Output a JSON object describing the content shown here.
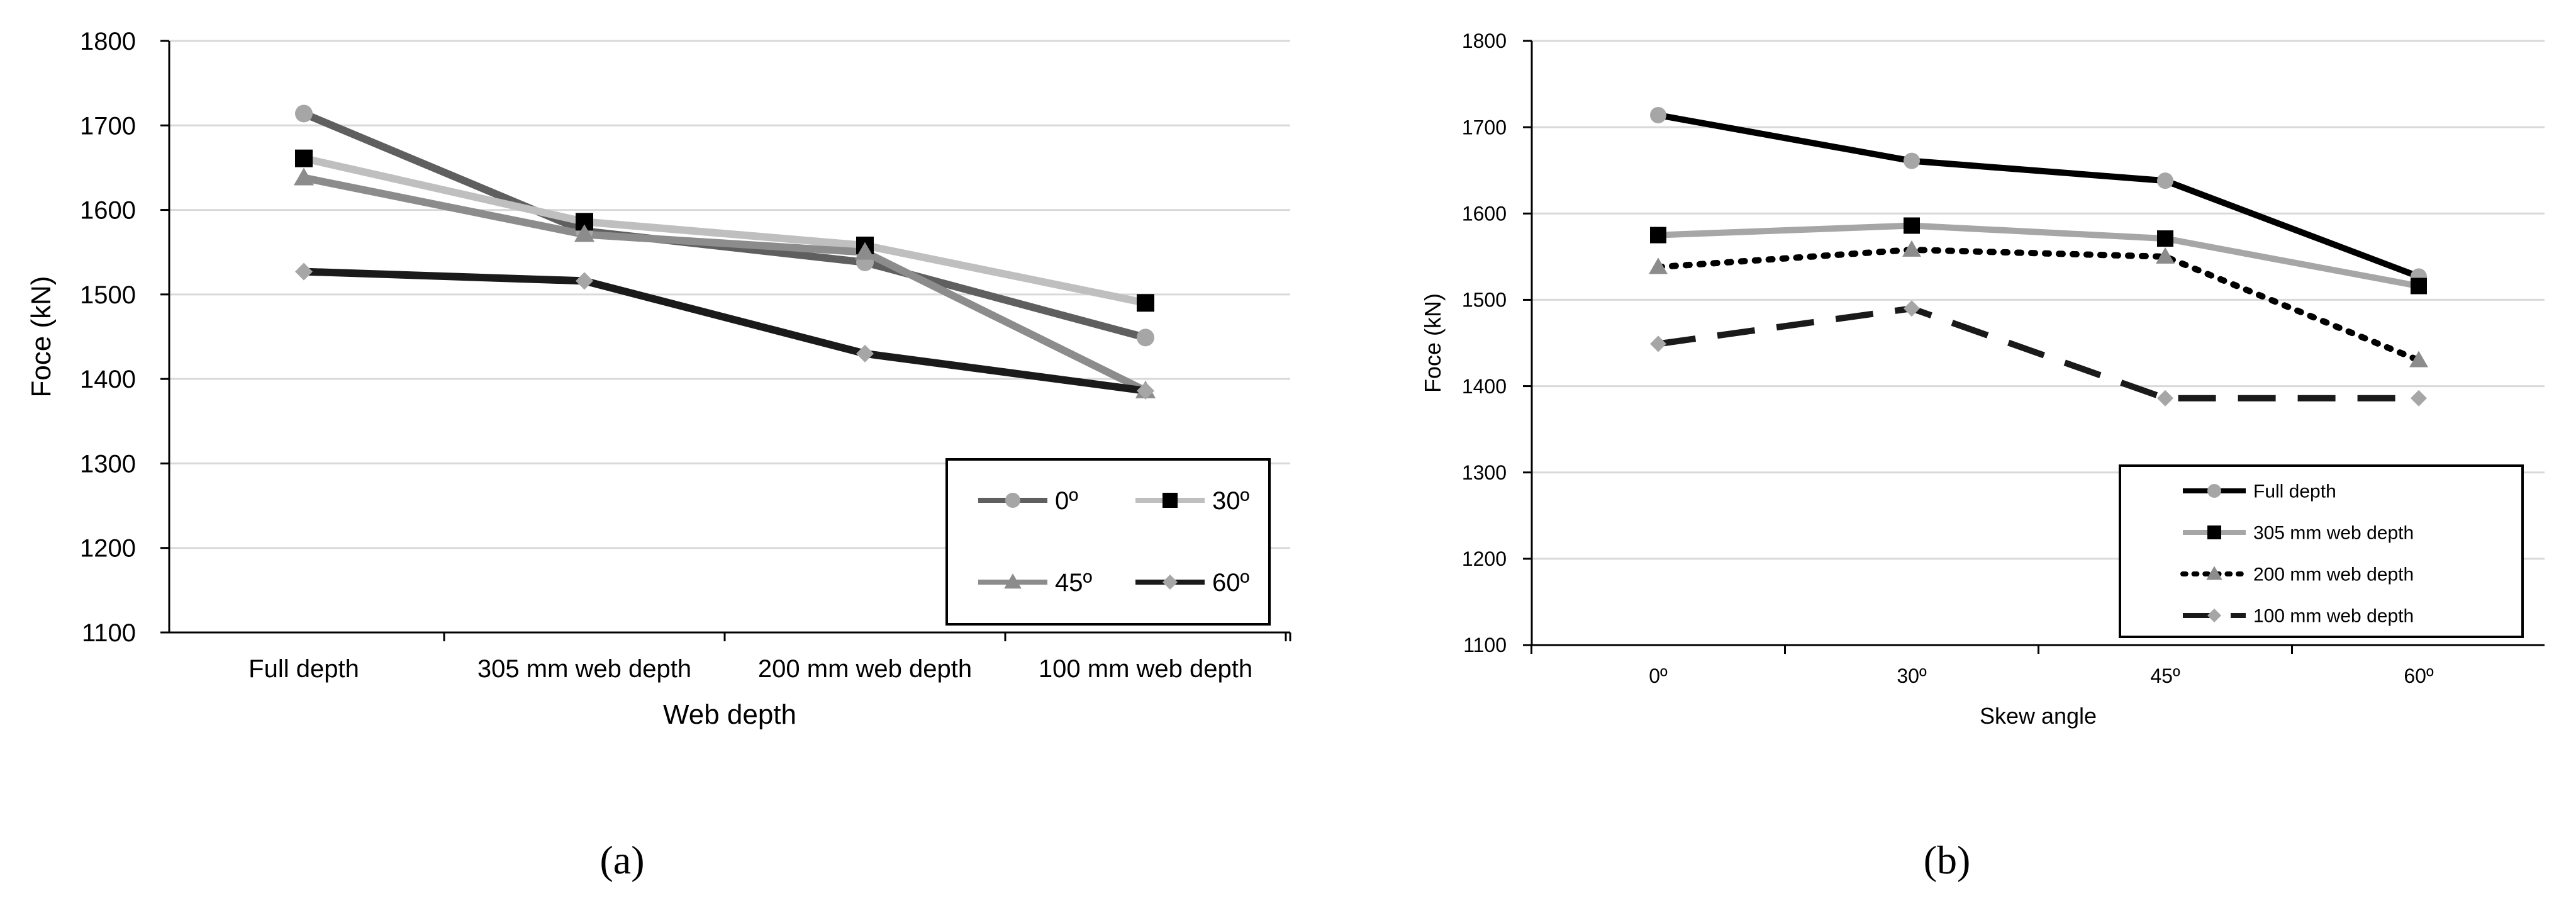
{
  "chart_data": [
    {
      "panel_label": "(a)",
      "type": "line",
      "xlabel": "Web depth",
      "ylabel": "Foce (kN)",
      "categories": [
        "Full depth",
        "305 mm web depth",
        "200 mm web depth",
        "100 mm web depth"
      ],
      "ylim": [
        1100,
        1800
      ],
      "yticks": [
        1100,
        1200,
        1300,
        1400,
        1500,
        1600,
        1700,
        1800
      ],
      "grid": true,
      "legend_placement": "bottom-right",
      "series": [
        {
          "name": "0º",
          "values": [
            1714,
            1575,
            1538,
            1449
          ],
          "color": "#5f5f5f",
          "marker": "circle",
          "marker_color": "#a6a6a6",
          "dash": "solid"
        },
        {
          "name": "30º",
          "values": [
            1661,
            1586,
            1558,
            1490
          ],
          "color": "#bfbfbf",
          "marker": "square",
          "marker_color": "#000000",
          "dash": "solid"
        },
        {
          "name": "45º",
          "values": [
            1638,
            1571,
            1550,
            1386
          ],
          "color": "#8c8c8c",
          "marker": "triangle",
          "marker_color": "#8c8c8c",
          "dash": "solid"
        },
        {
          "name": "60º",
          "values": [
            1527,
            1516,
            1430,
            1386
          ],
          "color": "#1a1a1a",
          "marker": "diamond",
          "marker_color": "#a6a6a6",
          "dash": "solid"
        }
      ]
    },
    {
      "panel_label": "(b)",
      "type": "line",
      "xlabel": "Skew angle",
      "ylabel": "Foce (kN)",
      "categories": [
        "0º",
        "30º",
        "45º",
        "60º"
      ],
      "ylim": [
        1100,
        1800
      ],
      "yticks": [
        1100,
        1200,
        1300,
        1400,
        1500,
        1600,
        1700,
        1800
      ],
      "grid": true,
      "legend_placement": "bottom-right",
      "series": [
        {
          "name": "Full depth",
          "values": [
            1714,
            1661,
            1638,
            1527
          ],
          "color": "#000000",
          "marker": "circle",
          "marker_color": "#a6a6a6",
          "dash": "solid"
        },
        {
          "name": "305 mm web depth",
          "values": [
            1575,
            1586,
            1571,
            1516
          ],
          "color": "#a6a6a6",
          "marker": "square",
          "marker_color": "#000000",
          "dash": "solid"
        },
        {
          "name": "200 mm web depth",
          "values": [
            1538,
            1558,
            1550,
            1430
          ],
          "color": "#000000",
          "marker": "triangle",
          "marker_color": "#8c8c8c",
          "dash": "dotted"
        },
        {
          "name": "100 mm web depth",
          "values": [
            1449,
            1490,
            1386,
            1386
          ],
          "color": "#1a1a1a",
          "marker": "diamond",
          "marker_color": "#a6a6a6",
          "dash": "dashed"
        }
      ]
    }
  ]
}
